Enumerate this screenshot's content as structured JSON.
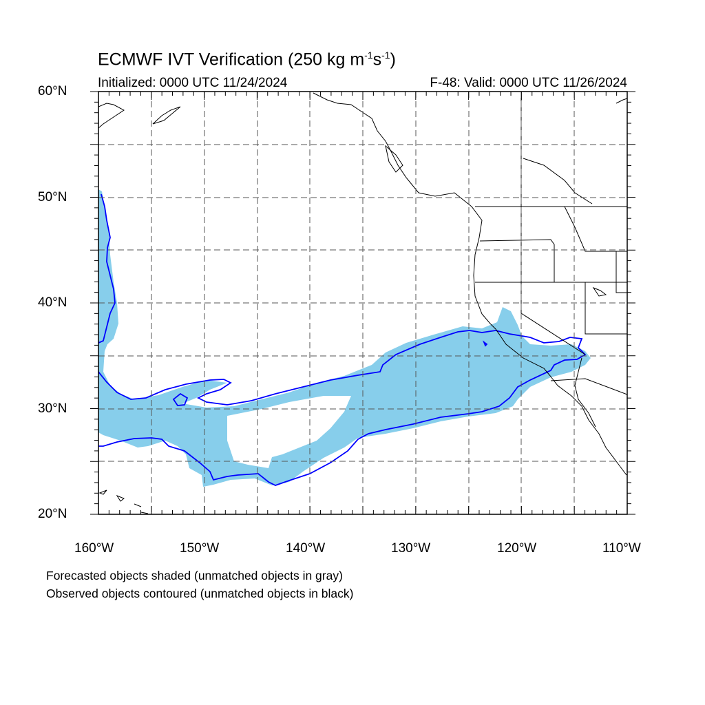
{
  "header": {
    "title_main": "ECMWF IVT Verification (250 kg m",
    "title_sup1": "-1",
    "title_mid": "s",
    "title_sup2": "-1",
    "title_end": ")",
    "initialized": "Initialized: 0000 UTC 11/24/2024",
    "valid": "F-48: Valid: 0000 UTC 11/26/2024"
  },
  "map": {
    "extent": {
      "lon_min": -160,
      "lon_max": -110,
      "lat_min": 20,
      "lat_max": 60
    },
    "lat_labels": [
      "20°N",
      "30°N",
      "40°N",
      "50°N",
      "60°N"
    ],
    "lon_labels": [
      "160°W",
      "150°W",
      "140°W",
      "130°W",
      "120°W",
      "110°W"
    ],
    "forecast_fill_color": "#87ceeb",
    "observed_contour_color": "#0000ff",
    "coastline_color": "#000000",
    "gridline_style": "dashed"
  },
  "footer": {
    "line1": "Forecasted objects shaded (unmatched objects in gray)",
    "line2": "Observed objects contoured (unmatched objects in black)"
  }
}
